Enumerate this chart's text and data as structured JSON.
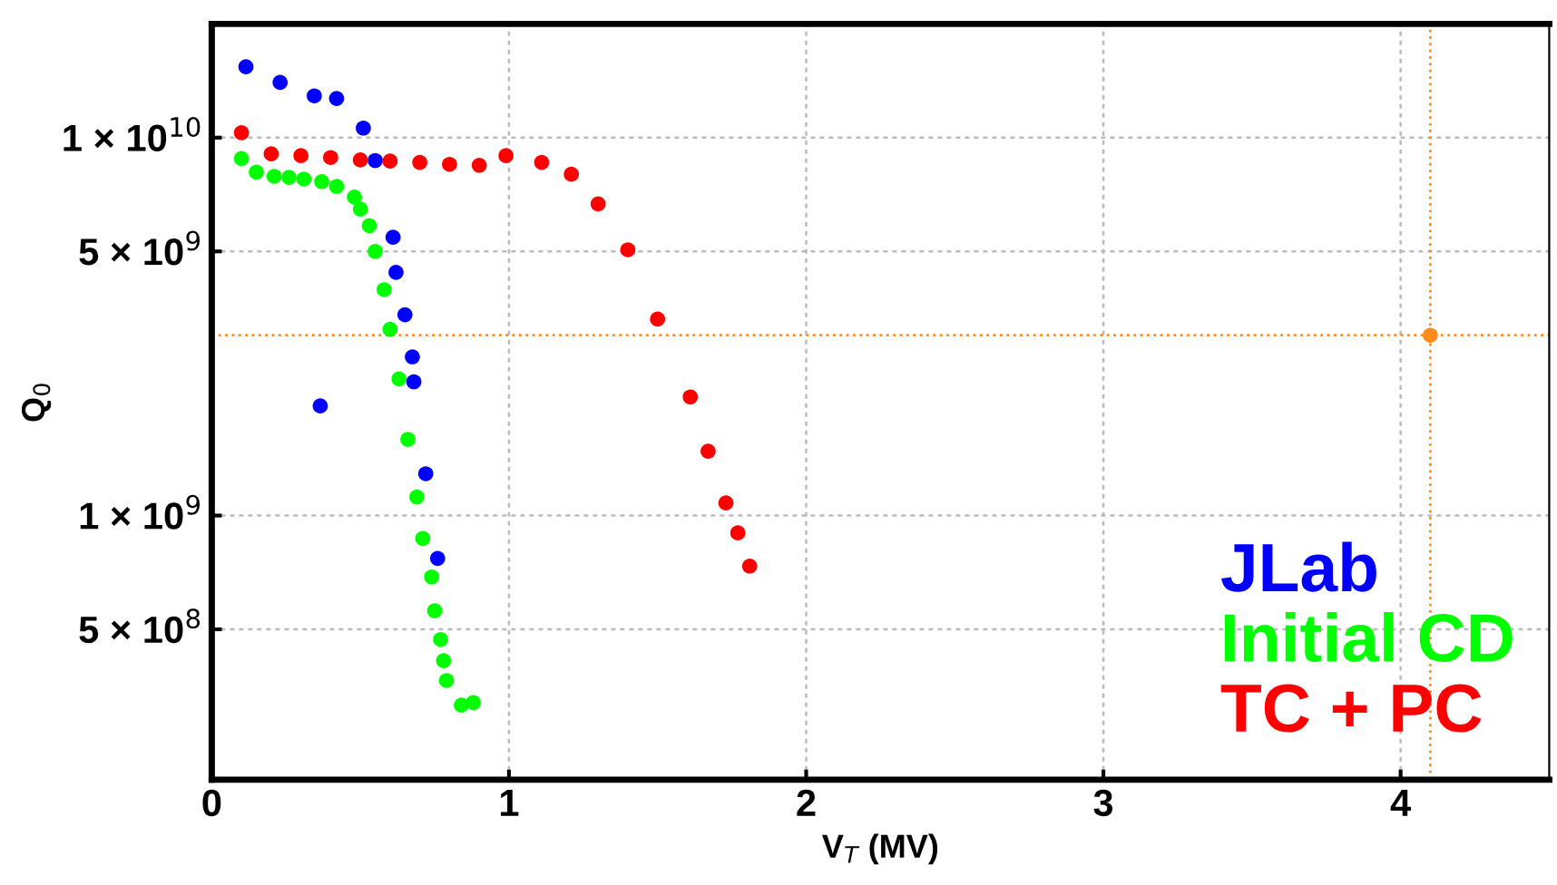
{
  "chart_data": {
    "type": "scatter",
    "xlabel": "V$_{T}$ (MV)",
    "ylabel": "Q$_{0}$",
    "log": "y",
    "xlim": [
      0,
      4.5
    ],
    "xticks": [
      0,
      1,
      2,
      3,
      4
    ],
    "ylim": [
      200000000.0,
      20000000000.0
    ],
    "yticks": [
      {
        "value": 500000000.0,
        "label": "5 × 10$^{8}$"
      },
      {
        "value": 1000000000.0,
        "label": "1 × 10$^{9}$"
      },
      {
        "value": 5000000000.0,
        "label": "5 × 10$^{9}$"
      },
      {
        "value": 10000000000.0,
        "label": "1 × 10$^{10}$"
      }
    ],
    "grid": true,
    "legend": "bottom right",
    "marker": "circle",
    "series": [
      {
        "name": "JLab",
        "color": "#0000ff",
        "x": [
          0.115,
          0.23,
          0.345,
          0.42,
          0.51,
          0.55,
          0.61,
          0.62,
          0.65,
          0.675,
          0.68,
          0.365,
          0.72,
          0.76
        ],
        "values": [
          15400000000.0,
          14000000000.0,
          12900000000.0,
          12700000000.0,
          10600000000.0,
          8700000000.0,
          5450000000.0,
          4400000000.0,
          3400000000.0,
          2630000000.0,
          2260000000.0,
          1950000000.0,
          1290000000.0,
          770000000.0
        ]
      },
      {
        "name": "Initial CD",
        "color": "#00ff00",
        "x": [
          0.1,
          0.15,
          0.21,
          0.26,
          0.31,
          0.37,
          0.42,
          0.48,
          0.5,
          0.53,
          0.55,
          0.58,
          0.6,
          0.63,
          0.66,
          0.69,
          0.71,
          0.74,
          0.75,
          0.77,
          0.78,
          0.79,
          0.84,
          0.88
        ],
        "values": [
          8800000000.0,
          8100000000.0,
          7900000000.0,
          7850000000.0,
          7770000000.0,
          7650000000.0,
          7430000000.0,
          6960000000.0,
          6470000000.0,
          5850000000.0,
          5000000000.0,
          3960000000.0,
          3110000000.0,
          2300000000.0,
          1590000000.0,
          1120000000.0,
          870000000.0,
          688000000.0,
          560000000.0,
          470000000.0,
          413000000.0,
          366000000.0,
          315000000.0,
          320000000.0
        ]
      },
      {
        "name": "TC + PC",
        "color": "#ff0000",
        "x": [
          0.1,
          0.2,
          0.3,
          0.4,
          0.5,
          0.6,
          0.7,
          0.8,
          0.9,
          0.99,
          1.11,
          1.21,
          1.3,
          1.4,
          1.5,
          1.61,
          1.67,
          1.73,
          1.77,
          1.81
        ],
        "values": [
          10300000000.0,
          9060000000.0,
          8960000000.0,
          8860000000.0,
          8730000000.0,
          8670000000.0,
          8600000000.0,
          8500000000.0,
          8450000000.0,
          8960000000.0,
          8600000000.0,
          8000000000.0,
          6680000000.0,
          5050000000.0,
          3310000000.0,
          2060000000.0,
          1480000000.0,
          1080000000.0,
          900000000.0,
          735000000.0
        ]
      },
      {
        "color": "#ff8c1a",
        "x": [
          4.1
        ],
        "values": [
          3000000000.0
        ]
      }
    ],
    "ref_lines": [
      {
        "axis": "x",
        "value": 4.1,
        "color": "#ff8c1a",
        "line_style": "dotted"
      },
      {
        "axis": "y",
        "value": 3000000000.0,
        "color": "#ff8c1a",
        "line_style": "dotted"
      }
    ]
  }
}
